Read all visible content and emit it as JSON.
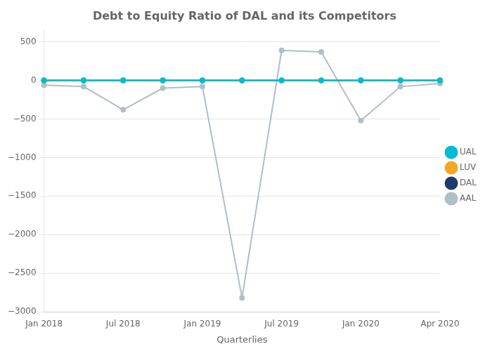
{
  "chart_data": {
    "type": "line",
    "title": "Debt to Equity Ratio of DAL and its Competitors",
    "xlabel": "Quarterlies",
    "categories": [
      "Jan 2018",
      null,
      "Jul 2018",
      null,
      "Jan 2019",
      null,
      "Jul 2019",
      null,
      "Jan 2020",
      null,
      "Apr 2020"
    ],
    "series": [
      {
        "name": "AAL",
        "color": "#b0bec5",
        "values": [
          -60,
          -80,
          -380,
          -100,
          -80,
          -2820,
          390,
          370,
          -520,
          -80,
          -40
        ]
      },
      {
        "name": "DAL",
        "color": "#1f3b6e",
        "values": [
          0,
          0,
          0,
          0,
          0,
          0,
          0,
          0,
          0,
          0,
          0
        ]
      },
      {
        "name": "LUV",
        "color": "#f5a623",
        "values": [
          0,
          0,
          0,
          0,
          0,
          0,
          0,
          0,
          0,
          0,
          0
        ]
      },
      {
        "name": "UAL",
        "color": "#00bcd4",
        "values": [
          0,
          0,
          0,
          0,
          0,
          0,
          0,
          0,
          0,
          0,
          0
        ]
      }
    ],
    "ylim": [
      -3000,
      650
    ],
    "yticks": [
      500,
      0,
      {
        "value": -500,
        "label": "−500"
      },
      {
        "value": -1000,
        "label": "−1000"
      },
      {
        "value": -1500,
        "label": "−1500"
      },
      {
        "value": -2000,
        "label": "−2000"
      },
      {
        "value": -2500,
        "label": "−2500"
      },
      {
        "value": -3000,
        "label": "−3000"
      }
    ],
    "grid": "y",
    "legend": "right",
    "marker": "circle"
  }
}
